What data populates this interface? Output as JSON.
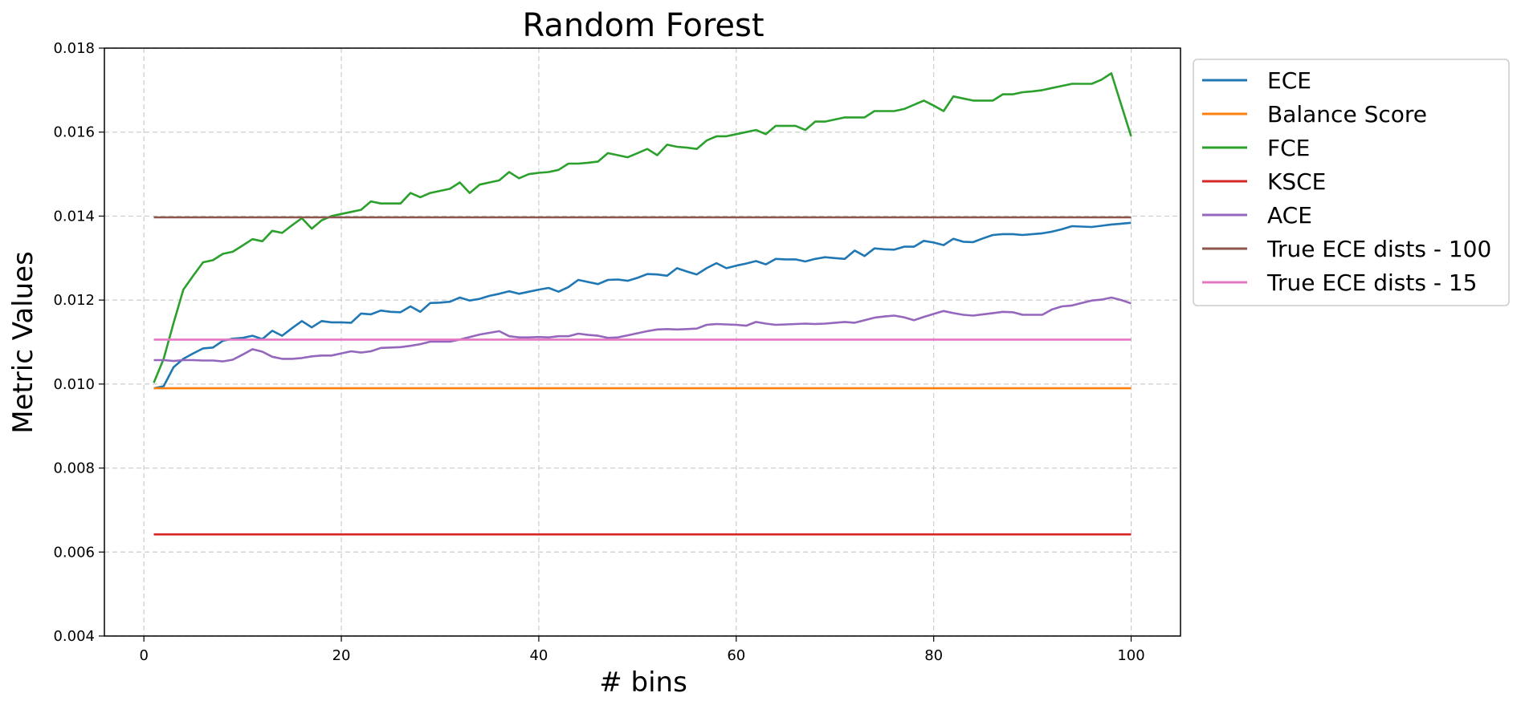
{
  "chart_data": {
    "type": "line",
    "title": "Random Forest",
    "xlabel": "# bins",
    "ylabel": "Metric Values",
    "xlim": [
      -4,
      105
    ],
    "ylim": [
      0.004,
      0.018
    ],
    "xticks": [
      0,
      20,
      40,
      60,
      80,
      100
    ],
    "yticks": [
      0.004,
      0.006,
      0.008,
      0.01,
      0.012,
      0.014,
      0.016,
      0.018
    ],
    "ytick_labels": [
      "0.004",
      "0.006",
      "0.008",
      "0.010",
      "0.012",
      "0.014",
      "0.016",
      "0.018"
    ],
    "grid": true,
    "legend_position": "outside-right",
    "x": [
      1,
      2,
      3,
      4,
      5,
      6,
      7,
      8,
      9,
      10,
      11,
      12,
      13,
      14,
      15,
      16,
      17,
      18,
      19,
      20,
      21,
      22,
      23,
      24,
      25,
      26,
      27,
      28,
      29,
      30,
      31,
      32,
      33,
      34,
      35,
      36,
      37,
      38,
      39,
      40,
      41,
      42,
      43,
      44,
      45,
      46,
      47,
      48,
      49,
      50,
      51,
      52,
      53,
      54,
      55,
      56,
      57,
      58,
      59,
      60,
      61,
      62,
      63,
      64,
      65,
      66,
      67,
      68,
      69,
      70,
      71,
      72,
      73,
      74,
      75,
      76,
      77,
      78,
      79,
      80,
      81,
      82,
      83,
      84,
      85,
      86,
      87,
      88,
      89,
      90,
      91,
      92,
      93,
      94,
      95,
      96,
      97,
      98,
      99,
      100
    ],
    "series": [
      {
        "name": "ECE",
        "color": "#1f77b4",
        "values": [
          0.0099,
          0.00995,
          0.0104,
          0.0106,
          0.01073,
          0.01085,
          0.01087,
          0.01103,
          0.01108,
          0.0111,
          0.01115,
          0.01107,
          0.01127,
          0.01115,
          0.01133,
          0.0115,
          0.01135,
          0.0115,
          0.01147,
          0.01147,
          0.01146,
          0.01168,
          0.01166,
          0.01175,
          0.01172,
          0.01171,
          0.01185,
          0.01172,
          0.01193,
          0.01194,
          0.01196,
          0.01206,
          0.01199,
          0.01203,
          0.0121,
          0.01215,
          0.01221,
          0.01215,
          0.0122,
          0.01225,
          0.01229,
          0.0122,
          0.01231,
          0.01248,
          0.01243,
          0.01238,
          0.01248,
          0.01249,
          0.01246,
          0.01253,
          0.01262,
          0.01261,
          0.01258,
          0.01276,
          0.01268,
          0.01261,
          0.01276,
          0.01288,
          0.01276,
          0.01282,
          0.01287,
          0.01293,
          0.01285,
          0.01298,
          0.01297,
          0.01297,
          0.01292,
          0.01298,
          0.01302,
          0.013,
          0.01298,
          0.01318,
          0.01305,
          0.01323,
          0.01321,
          0.0132,
          0.01327,
          0.01327,
          0.01341,
          0.01337,
          0.01331,
          0.01346,
          0.01339,
          0.01338,
          0.01347,
          0.01355,
          0.01357,
          0.01357,
          0.01355,
          0.01357,
          0.01359,
          0.01363,
          0.01369,
          0.01376,
          0.01375,
          0.01374,
          0.01377,
          0.0138,
          0.01382,
          0.01384
        ]
      },
      {
        "name": "Balance Score",
        "color": "#ff7f0e",
        "values": [
          0.0099,
          0.0099,
          0.0099,
          0.0099,
          0.0099,
          0.0099,
          0.0099,
          0.0099,
          0.0099,
          0.0099,
          0.0099,
          0.0099,
          0.0099,
          0.0099,
          0.0099,
          0.0099,
          0.0099,
          0.0099,
          0.0099,
          0.0099,
          0.0099,
          0.0099,
          0.0099,
          0.0099,
          0.0099,
          0.0099,
          0.0099,
          0.0099,
          0.0099,
          0.0099,
          0.0099,
          0.0099,
          0.0099,
          0.0099,
          0.0099,
          0.0099,
          0.0099,
          0.0099,
          0.0099,
          0.0099,
          0.0099,
          0.0099,
          0.0099,
          0.0099,
          0.0099,
          0.0099,
          0.0099,
          0.0099,
          0.0099,
          0.0099,
          0.0099,
          0.0099,
          0.0099,
          0.0099,
          0.0099,
          0.0099,
          0.0099,
          0.0099,
          0.0099,
          0.0099,
          0.0099,
          0.0099,
          0.0099,
          0.0099,
          0.0099,
          0.0099,
          0.0099,
          0.0099,
          0.0099,
          0.0099,
          0.0099,
          0.0099,
          0.0099,
          0.0099,
          0.0099,
          0.0099,
          0.0099,
          0.0099,
          0.0099,
          0.0099,
          0.0099,
          0.0099,
          0.0099,
          0.0099,
          0.0099,
          0.0099,
          0.0099,
          0.0099,
          0.0099,
          0.0099,
          0.0099,
          0.0099,
          0.0099,
          0.0099,
          0.0099,
          0.0099,
          0.0099,
          0.0099,
          0.0099,
          0.0099
        ]
      },
      {
        "name": "FCE",
        "color": "#2ca02c",
        "values": [
          0.01003,
          0.0106,
          0.01145,
          0.01225,
          0.01258,
          0.0129,
          0.01295,
          0.0131,
          0.01315,
          0.0133,
          0.01345,
          0.0134,
          0.01365,
          0.0136,
          0.01378,
          0.01395,
          0.0137,
          0.0139,
          0.014,
          0.01405,
          0.0141,
          0.01415,
          0.01435,
          0.0143,
          0.0143,
          0.0143,
          0.01455,
          0.01445,
          0.01455,
          0.0146,
          0.01465,
          0.0148,
          0.01455,
          0.01475,
          0.0148,
          0.01485,
          0.01505,
          0.0149,
          0.015,
          0.01503,
          0.01505,
          0.0151,
          0.01525,
          0.01525,
          0.01527,
          0.0153,
          0.0155,
          0.01545,
          0.0154,
          0.0155,
          0.0156,
          0.01545,
          0.0157,
          0.01565,
          0.01563,
          0.0156,
          0.0158,
          0.0159,
          0.0159,
          0.01595,
          0.016,
          0.01605,
          0.01595,
          0.01615,
          0.01615,
          0.01615,
          0.01605,
          0.01625,
          0.01625,
          0.0163,
          0.01635,
          0.01635,
          0.01635,
          0.0165,
          0.0165,
          0.0165,
          0.01655,
          0.01665,
          0.01675,
          0.01663,
          0.0165,
          0.01685,
          0.0168,
          0.01675,
          0.01675,
          0.01675,
          0.0169,
          0.0169,
          0.01695,
          0.01697,
          0.017,
          0.01705,
          0.0171,
          0.01715,
          0.01715,
          0.01715,
          0.01725,
          0.0174,
          0.01665,
          0.0159
        ]
      },
      {
        "name": "KSCE",
        "color": "#d62728",
        "values": [
          0.00642,
          0.00642,
          0.00642,
          0.00642,
          0.00642,
          0.00642,
          0.00642,
          0.00642,
          0.00642,
          0.00642,
          0.00642,
          0.00642,
          0.00642,
          0.00642,
          0.00642,
          0.00642,
          0.00642,
          0.00642,
          0.00642,
          0.00642,
          0.00642,
          0.00642,
          0.00642,
          0.00642,
          0.00642,
          0.00642,
          0.00642,
          0.00642,
          0.00642,
          0.00642,
          0.00642,
          0.00642,
          0.00642,
          0.00642,
          0.00642,
          0.00642,
          0.00642,
          0.00642,
          0.00642,
          0.00642,
          0.00642,
          0.00642,
          0.00642,
          0.00642,
          0.00642,
          0.00642,
          0.00642,
          0.00642,
          0.00642,
          0.00642,
          0.00642,
          0.00642,
          0.00642,
          0.00642,
          0.00642,
          0.00642,
          0.00642,
          0.00642,
          0.00642,
          0.00642,
          0.00642,
          0.00642,
          0.00642,
          0.00642,
          0.00642,
          0.00642,
          0.00642,
          0.00642,
          0.00642,
          0.00642,
          0.00642,
          0.00642,
          0.00642,
          0.00642,
          0.00642,
          0.00642,
          0.00642,
          0.00642,
          0.00642,
          0.00642,
          0.00642,
          0.00642,
          0.00642,
          0.00642,
          0.00642,
          0.00642,
          0.00642,
          0.00642,
          0.00642,
          0.00642,
          0.00642,
          0.00642,
          0.00642,
          0.00642,
          0.00642,
          0.00642,
          0.00642,
          0.00642,
          0.00642,
          0.00642
        ]
      },
      {
        "name": "ACE",
        "color": "#9467bd",
        "values": [
          0.01057,
          0.01057,
          0.01055,
          0.01057,
          0.01057,
          0.01056,
          0.01056,
          0.01054,
          0.01058,
          0.0107,
          0.01083,
          0.01077,
          0.01065,
          0.0106,
          0.0106,
          0.01062,
          0.01066,
          0.01068,
          0.01068,
          0.01073,
          0.01078,
          0.01075,
          0.01078,
          0.01086,
          0.01087,
          0.01088,
          0.01091,
          0.01095,
          0.01101,
          0.01101,
          0.01101,
          0.01106,
          0.01112,
          0.01118,
          0.01122,
          0.01126,
          0.01114,
          0.01111,
          0.01111,
          0.01112,
          0.01111,
          0.01114,
          0.01114,
          0.0112,
          0.01117,
          0.01115,
          0.0111,
          0.01111,
          0.01116,
          0.01121,
          0.01126,
          0.0113,
          0.01131,
          0.0113,
          0.01131,
          0.01132,
          0.01141,
          0.01143,
          0.01142,
          0.01141,
          0.01139,
          0.01148,
          0.01144,
          0.01141,
          0.01142,
          0.01143,
          0.01144,
          0.01143,
          0.01144,
          0.01146,
          0.01148,
          0.01146,
          0.01152,
          0.01158,
          0.01161,
          0.01163,
          0.01159,
          0.01152,
          0.0116,
          0.01167,
          0.01174,
          0.01169,
          0.01165,
          0.01163,
          0.01166,
          0.01169,
          0.01172,
          0.01171,
          0.01165,
          0.01165,
          0.01165,
          0.01178,
          0.01185,
          0.01187,
          0.01193,
          0.01199,
          0.01201,
          0.01206,
          0.012,
          0.01192
        ]
      },
      {
        "name": "True ECE dists - 100",
        "color": "#8c564b",
        "values": [
          0.01397,
          0.01397,
          0.01397,
          0.01397,
          0.01397,
          0.01397,
          0.01397,
          0.01397,
          0.01397,
          0.01397,
          0.01397,
          0.01397,
          0.01397,
          0.01397,
          0.01397,
          0.01397,
          0.01397,
          0.01397,
          0.01397,
          0.01397,
          0.01397,
          0.01397,
          0.01397,
          0.01397,
          0.01397,
          0.01397,
          0.01397,
          0.01397,
          0.01397,
          0.01397,
          0.01397,
          0.01397,
          0.01397,
          0.01397,
          0.01397,
          0.01397,
          0.01397,
          0.01397,
          0.01397,
          0.01397,
          0.01397,
          0.01397,
          0.01397,
          0.01397,
          0.01397,
          0.01397,
          0.01397,
          0.01397,
          0.01397,
          0.01397,
          0.01397,
          0.01397,
          0.01397,
          0.01397,
          0.01397,
          0.01397,
          0.01397,
          0.01397,
          0.01397,
          0.01397,
          0.01397,
          0.01397,
          0.01397,
          0.01397,
          0.01397,
          0.01397,
          0.01397,
          0.01397,
          0.01397,
          0.01397,
          0.01397,
          0.01397,
          0.01397,
          0.01397,
          0.01397,
          0.01397,
          0.01397,
          0.01397,
          0.01397,
          0.01397,
          0.01397,
          0.01397,
          0.01397,
          0.01397,
          0.01397,
          0.01397,
          0.01397,
          0.01397,
          0.01397,
          0.01397,
          0.01397,
          0.01397,
          0.01397,
          0.01397,
          0.01397,
          0.01397,
          0.01397,
          0.01397,
          0.01397,
          0.01397
        ]
      },
      {
        "name": "True ECE dists - 15",
        "color": "#e377c2",
        "values": [
          0.01106,
          0.01106,
          0.01106,
          0.01106,
          0.01106,
          0.01106,
          0.01106,
          0.01106,
          0.01106,
          0.01106,
          0.01106,
          0.01106,
          0.01106,
          0.01106,
          0.01106,
          0.01106,
          0.01106,
          0.01106,
          0.01106,
          0.01106,
          0.01106,
          0.01106,
          0.01106,
          0.01106,
          0.01106,
          0.01106,
          0.01106,
          0.01106,
          0.01106,
          0.01106,
          0.01106,
          0.01106,
          0.01106,
          0.01106,
          0.01106,
          0.01106,
          0.01106,
          0.01106,
          0.01106,
          0.01106,
          0.01106,
          0.01106,
          0.01106,
          0.01106,
          0.01106,
          0.01106,
          0.01106,
          0.01106,
          0.01106,
          0.01106,
          0.01106,
          0.01106,
          0.01106,
          0.01106,
          0.01106,
          0.01106,
          0.01106,
          0.01106,
          0.01106,
          0.01106,
          0.01106,
          0.01106,
          0.01106,
          0.01106,
          0.01106,
          0.01106,
          0.01106,
          0.01106,
          0.01106,
          0.01106,
          0.01106,
          0.01106,
          0.01106,
          0.01106,
          0.01106,
          0.01106,
          0.01106,
          0.01106,
          0.01106,
          0.01106,
          0.01106,
          0.01106,
          0.01106,
          0.01106,
          0.01106,
          0.01106,
          0.01106,
          0.01106,
          0.01106,
          0.01106,
          0.01106,
          0.01106,
          0.01106,
          0.01106,
          0.01106,
          0.01106,
          0.01106,
          0.01106,
          0.01106,
          0.01106
        ]
      }
    ]
  }
}
